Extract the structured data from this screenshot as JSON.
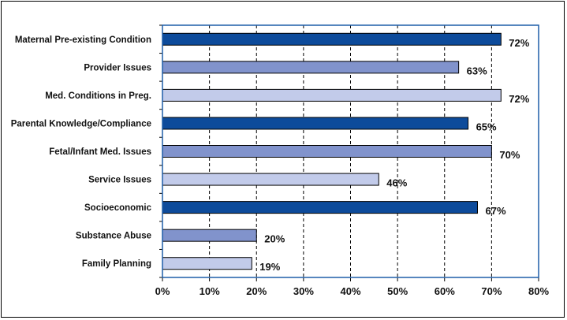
{
  "chart_data": {
    "type": "bar",
    "orientation": "horizontal",
    "categories": [
      "Maternal Pre-existing Condition",
      "Provider Issues",
      "Med. Conditions in Preg.",
      "Parental Knowledge/Compliance",
      "Fetal/Infant Med. Issues",
      "Service Issues",
      "Socioeconomic",
      "Substance Abuse",
      "Family Planning"
    ],
    "values": [
      72,
      63,
      72,
      65,
      70,
      46,
      67,
      20,
      19
    ],
    "data_labels": [
      "72%",
      "63%",
      "72%",
      "65%",
      "70%",
      "46%",
      "67%",
      "20%",
      "19%"
    ],
    "bar_colors": [
      "#0d4b9b",
      "#8193cc",
      "#c2cbea",
      "#0d4b9b",
      "#8193cc",
      "#c2cbea",
      "#0d4b9b",
      "#8193cc",
      "#c2cbea"
    ],
    "xlim": [
      0,
      80
    ],
    "xticks": [
      "0%",
      "10%",
      "20%",
      "30%",
      "40%",
      "50%",
      "60%",
      "70%",
      "80%"
    ],
    "grid": "vertical-dashed",
    "title": "",
    "xlabel": "",
    "ylabel": "",
    "legend": "none"
  },
  "colors": {
    "frame": "#000000",
    "plot_border": "#1f5ea8",
    "grid": "#000000"
  }
}
